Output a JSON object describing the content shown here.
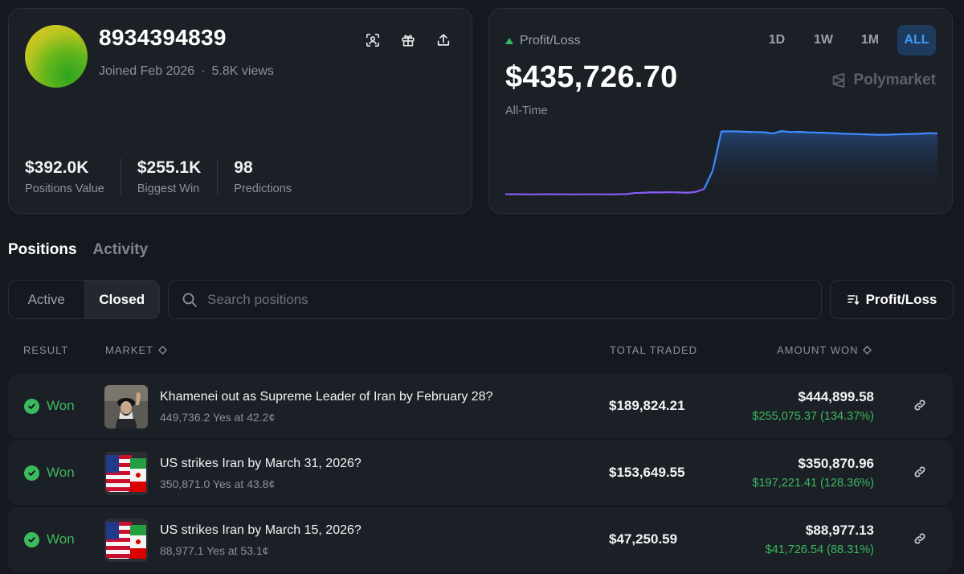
{
  "colors": {
    "background": "#15191f",
    "card": "#1b1f26",
    "accent_blue": "#3d9bf5",
    "green": "#3cba5e",
    "muted": "#8a919c"
  },
  "profile": {
    "username": "8934394839",
    "joined": "Joined Feb 2026",
    "separator": "·",
    "views": "5.8K views",
    "icons": [
      "scan-icon",
      "gift-icon",
      "share-icon"
    ],
    "stats": [
      {
        "value": "$392.0K",
        "label": "Positions Value"
      },
      {
        "value": "$255.1K",
        "label": "Biggest Win"
      },
      {
        "value": "98",
        "label": "Predictions"
      }
    ]
  },
  "pnl": {
    "label": "Profit/Loss",
    "value": "$435,726.70",
    "period": "All-Time",
    "brand": "Polymarket",
    "ranges": [
      "1D",
      "1W",
      "1M",
      "ALL"
    ],
    "active_range": "ALL"
  },
  "chart_data": {
    "type": "line",
    "title": "",
    "xlabel": "",
    "ylabel": "",
    "grid": false,
    "legend": "none",
    "x": [
      0,
      1,
      2,
      3,
      4,
      5,
      6,
      7,
      8,
      9,
      10,
      11,
      12,
      13,
      14,
      15,
      16,
      17,
      18,
      19,
      20,
      21,
      22,
      23,
      24,
      25,
      26,
      27,
      28,
      29,
      30,
      31,
      32,
      33,
      34,
      35,
      36,
      37,
      38,
      39,
      40,
      41,
      42,
      43,
      44,
      45,
      46,
      47,
      48,
      49,
      50
    ],
    "values": [
      -40000,
      -39500,
      -40000,
      -40500,
      -40000,
      -39500,
      -40000,
      -40000,
      -40500,
      -40000,
      -40000,
      -40000,
      -40500,
      -40000,
      -38000,
      -30000,
      -28000,
      -25000,
      -26000,
      -24000,
      -26000,
      -28000,
      -22000,
      0,
      140000,
      435000,
      436000,
      434000,
      432000,
      430000,
      428000,
      420000,
      438000,
      430000,
      432000,
      428000,
      426000,
      424000,
      422000,
      418000,
      416000,
      414000,
      412000,
      410000,
      410000,
      412000,
      414000,
      416000,
      418000,
      422000,
      420000
    ],
    "ylim": [
      -60000,
      450000
    ],
    "series_colors": {
      "before": "#8b5cf6",
      "after": "#3d8bfd"
    }
  },
  "tabs": [
    {
      "label": "Positions",
      "active": true
    },
    {
      "label": "Activity",
      "active": false
    }
  ],
  "filter": {
    "segments": [
      {
        "label": "Active",
        "active": false
      },
      {
        "label": "Closed",
        "active": true
      }
    ],
    "search_placeholder": "Search positions",
    "sort_label": "Profit/Loss"
  },
  "table": {
    "headers": {
      "result": "RESULT",
      "market": "MARKET",
      "total_traded": "TOTAL TRADED",
      "amount_won": "AMOUNT WON"
    },
    "rows": [
      {
        "result": "Won",
        "title": "Khamenei out as Supreme Leader of Iran by February 28?",
        "subtitle": "449,736.2 Yes at 42.2¢",
        "total_traded": "$189,824.21",
        "amount_won": "$444,899.58",
        "profit": "$255,075.37 (134.37%)",
        "thumb": "portrait-image"
      },
      {
        "result": "Won",
        "title": "US strikes Iran by March 31, 2026?",
        "subtitle": "350,871.0 Yes at 43.8¢",
        "total_traded": "$153,649.55",
        "amount_won": "$350,870.96",
        "profit": "$197,221.41 (128.36%)",
        "thumb": "us-iran-flags-image"
      },
      {
        "result": "Won",
        "title": "US strikes Iran by March 15, 2026?",
        "subtitle": "88,977.1 Yes at 53.1¢",
        "total_traded": "$47,250.59",
        "amount_won": "$88,977.13",
        "profit": "$41,726.54 (88.31%)",
        "thumb": "us-iran-flags-image"
      }
    ]
  }
}
